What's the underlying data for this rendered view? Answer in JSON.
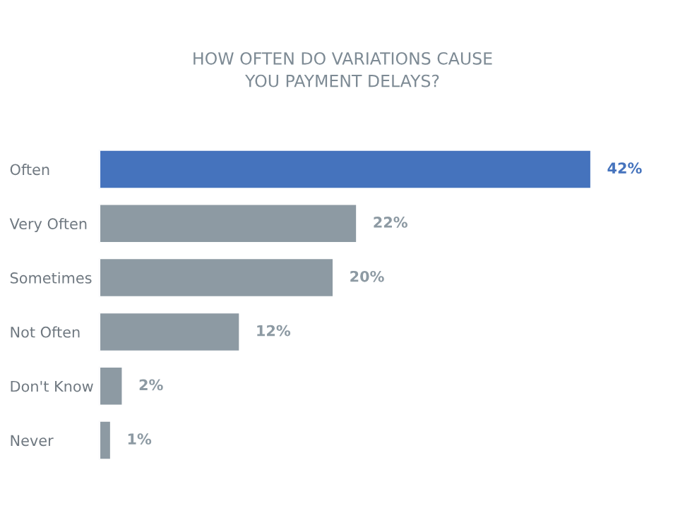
{
  "chart_data": {
    "type": "bar",
    "orientation": "horizontal",
    "title": "HOW OFTEN DO VARIATIONS CAUSE\nYOU PAYMENT DELAYS?",
    "categories": [
      "Often",
      "Very Often",
      "Sometimes",
      "Not Often",
      "Don't Know",
      "Never"
    ],
    "values": [
      42,
      22,
      20,
      12,
      2,
      1
    ],
    "colors": [
      "#4573bd",
      "#8d9aa3",
      "#8d9aa3",
      "#8d9aa3",
      "#8d9aa3",
      "#8d9aa3"
    ],
    "value_labels": [
      "42%",
      "22%",
      "20%",
      "12%",
      "2%",
      "1%"
    ],
    "grid": false,
    "legend": false
  }
}
